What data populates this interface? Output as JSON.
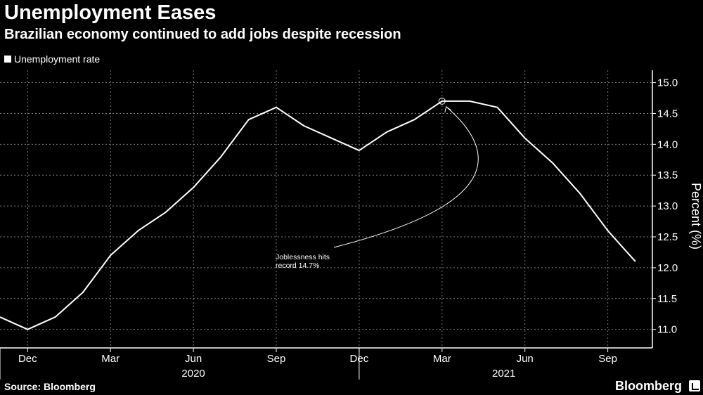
{
  "chart_data": {
    "type": "line",
    "title": "Unemployment Eases",
    "subtitle": "Brazilian economy continued to add jobs despite recession",
    "legend": [
      "Unemployment rate"
    ],
    "ylabel": "Percent (%)",
    "ylim": [
      10.7,
      15.2
    ],
    "yticks": [
      11.0,
      11.5,
      12.0,
      12.5,
      13.0,
      13.5,
      14.0,
      14.5,
      15.0
    ],
    "ytick_labels": [
      "11.0",
      "11.5",
      "12.0",
      "12.5",
      "13.0",
      "13.5",
      "14.0",
      "14.5",
      "15.0"
    ],
    "grid": true,
    "x_month_labels": [
      "Dec",
      "Mar",
      "Jun",
      "Sep",
      "Dec",
      "Mar",
      "Jun",
      "Sep"
    ],
    "x_year_labels": [
      "2020",
      "2021"
    ],
    "series": [
      {
        "name": "Unemployment rate",
        "color": "#ffffff",
        "x": [
          "2019-11",
          "2019-12",
          "2020-01",
          "2020-02",
          "2020-03",
          "2020-04",
          "2020-05",
          "2020-06",
          "2020-07",
          "2020-08",
          "2020-09",
          "2020-10",
          "2020-11",
          "2020-12",
          "2021-01",
          "2021-02",
          "2021-03",
          "2021-04",
          "2021-05",
          "2021-06",
          "2021-07",
          "2021-08",
          "2021-09",
          "2021-10"
        ],
        "values": [
          11.2,
          11.0,
          11.2,
          11.6,
          12.2,
          12.6,
          12.9,
          13.3,
          13.8,
          14.4,
          14.6,
          14.3,
          14.1,
          13.9,
          14.2,
          14.4,
          14.7,
          14.7,
          14.6,
          14.1,
          13.7,
          13.2,
          12.6,
          12.1
        ]
      }
    ],
    "annotation": {
      "lines": [
        "Joblessness hits",
        "record 14.7%"
      ],
      "target_x": "2021-03",
      "target_y": 14.7
    }
  },
  "footer": {
    "source": "Source: Bloomberg",
    "brand": "Bloomberg"
  }
}
